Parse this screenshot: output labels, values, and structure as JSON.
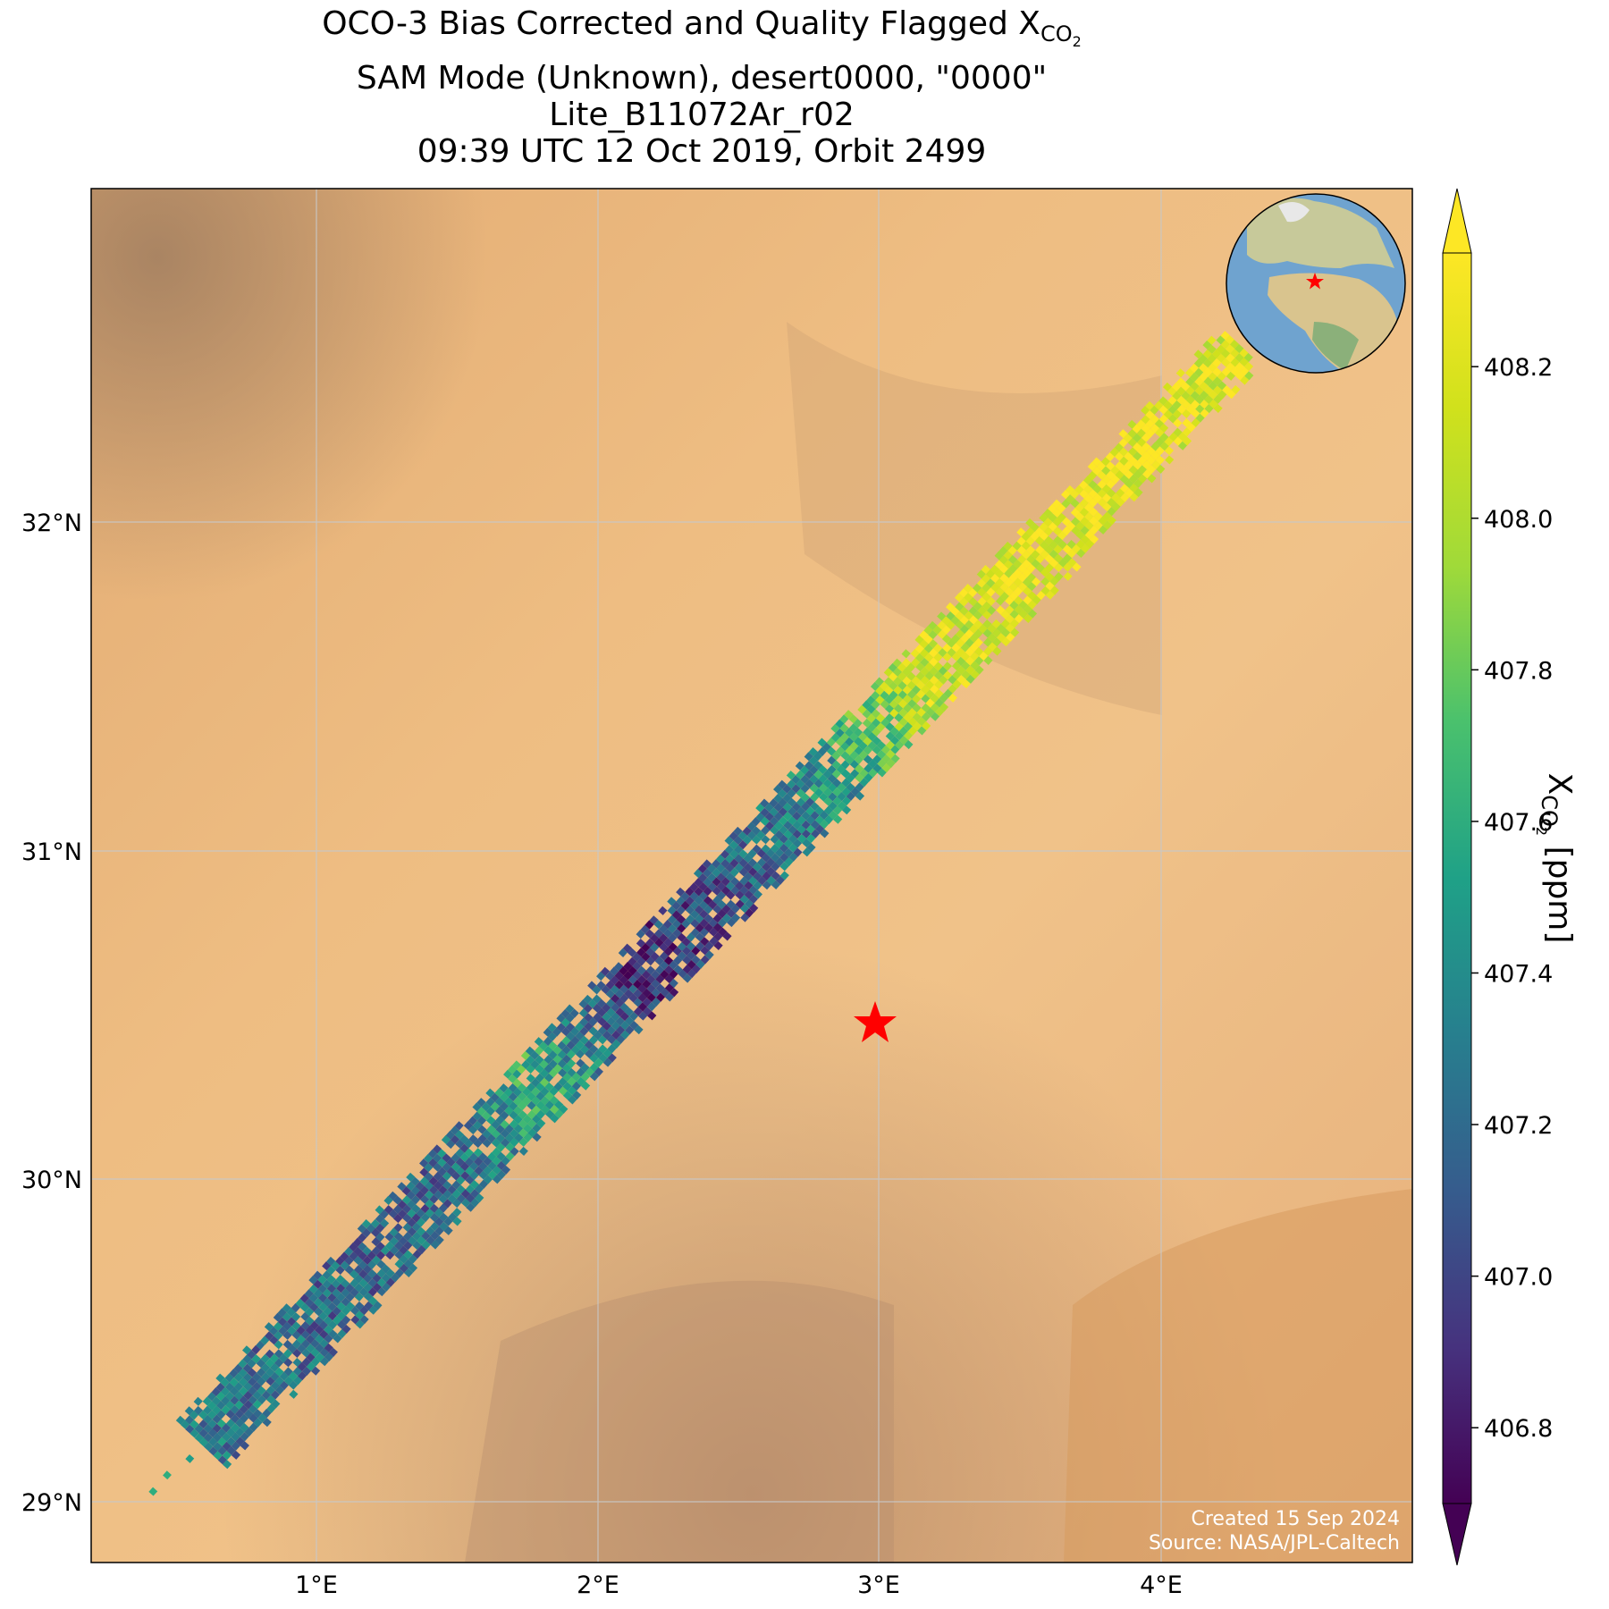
{
  "title": {
    "line1_prefix": "OCO-3 Bias Corrected and Quality Flagged X",
    "line1_sub": "CO",
    "line1_subsub": "2",
    "line2": "SAM Mode (Unknown), desert0000, \"0000\"",
    "line3": "Lite_B11072Ar_r02",
    "line4": "09:39 UTC 12 Oct 2019, Orbit 2499"
  },
  "map": {
    "lon_ticks": [
      "1°E",
      "2°E",
      "3°E",
      "4°E"
    ],
    "lat_ticks": [
      "32°N",
      "31°N",
      "30°N",
      "29°N"
    ],
    "lon_range": [
      0.2,
      4.9
    ],
    "lat_range": [
      28.85,
      33.0
    ],
    "target_marker": {
      "lon": 2.98,
      "lat": 30.48,
      "color": "#ff0000",
      "symbol": "star"
    },
    "credits": [
      "Created 15 Sep 2024",
      "Source: NASA/JPL-Caltech"
    ],
    "inset_globe": {
      "marker": "star",
      "marker_color": "#ff0000"
    }
  },
  "colorbar": {
    "label_prefix": "X",
    "label_sub": "CO",
    "label_subsub": "2",
    "label_suffix": " [ppm]",
    "ticks": [
      "406.8",
      "407.0",
      "407.2",
      "407.4",
      "407.6",
      "407.8",
      "408.0",
      "408.2"
    ],
    "range": [
      406.7,
      408.35
    ],
    "colormap": "viridis",
    "extend": "both"
  },
  "chart_data": {
    "type": "scatter",
    "description_series": "XCO2 soundings along a diagonal swath",
    "swath_points": [
      {
        "lat": 29.2,
        "xco2": 407.3
      },
      {
        "lat": 29.6,
        "xco2": 407.2
      },
      {
        "lat": 30.0,
        "xco2": 407.2
      },
      {
        "lat": 30.3,
        "xco2": 407.6
      },
      {
        "lat": 30.6,
        "xco2": 406.9
      },
      {
        "lat": 30.9,
        "xco2": 407.1
      },
      {
        "lat": 31.2,
        "xco2": 407.4
      },
      {
        "lat": 31.5,
        "xco2": 408.1
      },
      {
        "lat": 31.8,
        "xco2": 408.2
      },
      {
        "lat": 32.1,
        "xco2": 408.25
      },
      {
        "lat": 32.5,
        "xco2": 408.2
      }
    ]
  }
}
